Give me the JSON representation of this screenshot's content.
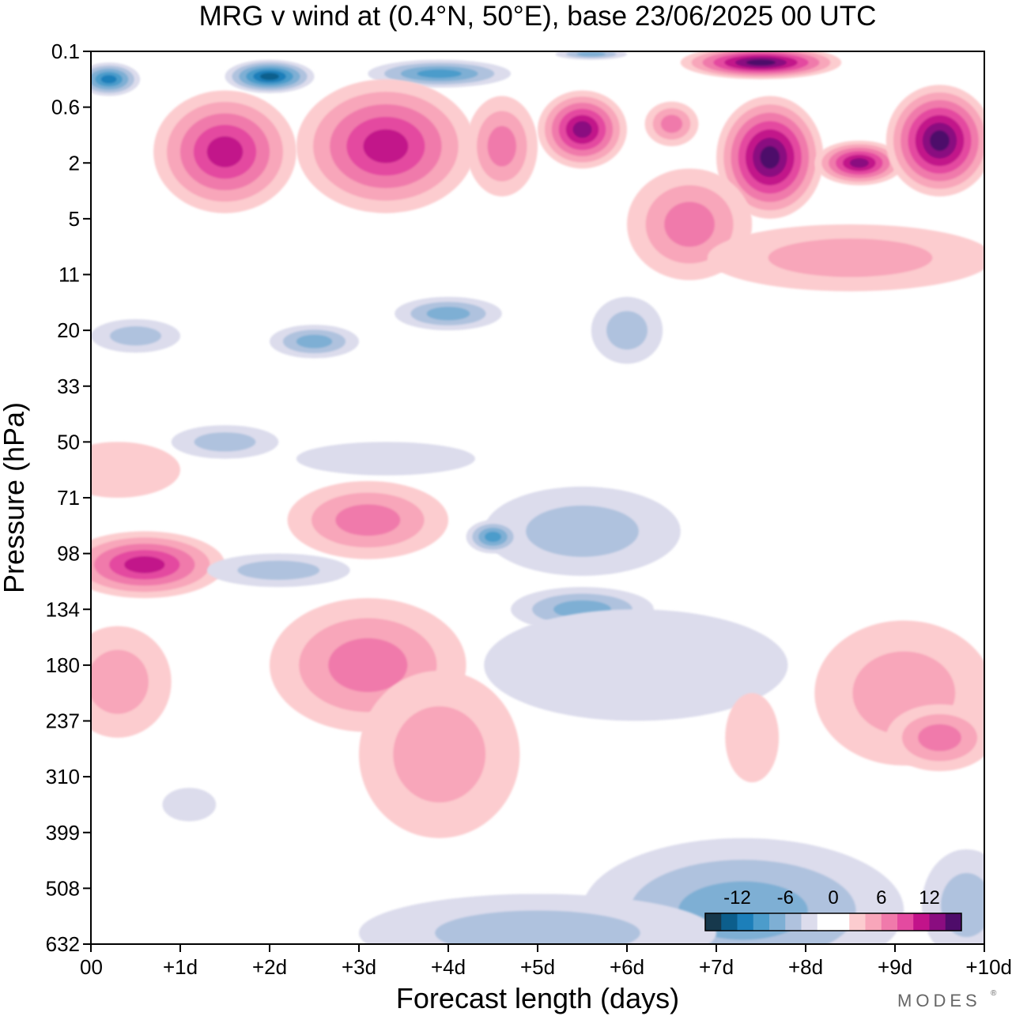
{
  "chart_data": {
    "type": "heatmap",
    "title": "MRG v wind at (0.4°N, 50°E),  base 23/06/2025  00 UTC",
    "xlabel": "Forecast length (days)",
    "ylabel": "Pressure (hPa)",
    "x_ticks": [
      "00",
      "+1d",
      "+2d",
      "+3d",
      "+4d",
      "+5d",
      "+6d",
      "+7d",
      "+8d",
      "+9d",
      "+10d"
    ],
    "y_ticks": [
      "0.1",
      "0.6",
      "2",
      "5",
      "11",
      "20",
      "33",
      "50",
      "71",
      "98",
      "134",
      "180",
      "237",
      "310",
      "399",
      "508",
      "632"
    ],
    "xlim": [
      0,
      10
    ],
    "ylim_index": [
      0,
      16
    ],
    "colorbar": {
      "labels": [
        "-12",
        "-6",
        "0",
        "6",
        "12"
      ],
      "label_values": [
        -12,
        -6,
        0,
        6,
        12
      ],
      "levels": [
        -14,
        -12,
        -10,
        -8,
        -6,
        -4,
        -2,
        0,
        2,
        4,
        6,
        8,
        10,
        12,
        14
      ],
      "colors": [
        "#16384c",
        "#0c5e8c",
        "#1c7fba",
        "#4c9ccb",
        "#7eafd4",
        "#afc2de",
        "#dcdcec",
        "#ffffff",
        "#ffffff",
        "#fccccf",
        "#f8a6ba",
        "#f07aab",
        "#e44aa0",
        "#c2138a",
        "#8a0d80",
        "#4e0c6a"
      ]
    },
    "features": [
      {
        "day": 0.2,
        "level": 0.5,
        "rx": 0.35,
        "ry": 0.3,
        "value": -10
      },
      {
        "day": 2.0,
        "level": 0.45,
        "rx": 0.5,
        "ry": 0.3,
        "value": -13
      },
      {
        "day": 3.9,
        "level": 0.4,
        "rx": 0.8,
        "ry": 0.25,
        "value": -8
      },
      {
        "day": 5.6,
        "level": 0.05,
        "rx": 0.4,
        "ry": 0.1,
        "value": -6
      },
      {
        "day": 7.5,
        "level": 0.2,
        "rx": 0.9,
        "ry": 0.3,
        "value": 14
      },
      {
        "day": 1.5,
        "level": 1.8,
        "rx": 0.8,
        "ry": 1.1,
        "value": 11
      },
      {
        "day": 3.3,
        "level": 1.7,
        "rx": 1.0,
        "ry": 1.2,
        "value": 10
      },
      {
        "day": 4.6,
        "level": 1.7,
        "rx": 0.4,
        "ry": 0.9,
        "value": 7
      },
      {
        "day": 5.5,
        "level": 1.4,
        "rx": 0.5,
        "ry": 0.7,
        "value": 12
      },
      {
        "day": 6.5,
        "level": 1.3,
        "rx": 0.3,
        "ry": 0.4,
        "value": 7
      },
      {
        "day": 7.6,
        "level": 1.9,
        "rx": 0.6,
        "ry": 1.1,
        "value": 14
      },
      {
        "day": 8.6,
        "level": 2.0,
        "rx": 0.5,
        "ry": 0.4,
        "value": 12
      },
      {
        "day": 9.5,
        "level": 1.6,
        "rx": 0.6,
        "ry": 1.0,
        "value": 14
      },
      {
        "day": 6.7,
        "level": 3.1,
        "rx": 0.7,
        "ry": 1.0,
        "value": 6
      },
      {
        "day": 8.5,
        "level": 3.7,
        "rx": 1.6,
        "ry": 0.6,
        "value": 5
      },
      {
        "day": 4.0,
        "level": 4.7,
        "rx": 0.6,
        "ry": 0.3,
        "value": -7
      },
      {
        "day": 2.5,
        "level": 5.2,
        "rx": 0.5,
        "ry": 0.3,
        "value": -6
      },
      {
        "day": 6.0,
        "level": 5.0,
        "rx": 0.4,
        "ry": 0.6,
        "value": -4
      },
      {
        "day": 0.5,
        "level": 5.1,
        "rx": 0.5,
        "ry": 0.3,
        "value": -4
      },
      {
        "day": 1.5,
        "level": 7.0,
        "rx": 0.6,
        "ry": 0.3,
        "value": -4
      },
      {
        "day": 3.3,
        "level": 7.3,
        "rx": 1.0,
        "ry": 0.3,
        "value": -3
      },
      {
        "day": 0.3,
        "level": 7.5,
        "rx": 0.7,
        "ry": 0.5,
        "value": 3
      },
      {
        "day": 5.5,
        "level": 8.6,
        "rx": 1.1,
        "ry": 0.8,
        "value": -4
      },
      {
        "day": 4.5,
        "level": 8.7,
        "rx": 0.3,
        "ry": 0.3,
        "value": -8
      },
      {
        "day": 3.1,
        "level": 8.4,
        "rx": 0.9,
        "ry": 0.7,
        "value": 6
      },
      {
        "day": 0.6,
        "level": 9.2,
        "rx": 0.9,
        "ry": 0.6,
        "value": 10
      },
      {
        "day": 2.1,
        "level": 9.3,
        "rx": 0.8,
        "ry": 0.3,
        "value": -4
      },
      {
        "day": 5.5,
        "level": 10.0,
        "rx": 0.8,
        "ry": 0.4,
        "value": -6
      },
      {
        "day": 3.1,
        "level": 11.0,
        "rx": 1.1,
        "ry": 1.2,
        "value": 7
      },
      {
        "day": 3.9,
        "level": 12.6,
        "rx": 0.9,
        "ry": 1.5,
        "value": 5
      },
      {
        "day": 0.3,
        "level": 11.3,
        "rx": 0.6,
        "ry": 1.0,
        "value": 5
      },
      {
        "day": 6.1,
        "level": 11.0,
        "rx": 1.7,
        "ry": 1.0,
        "value": -3
      },
      {
        "day": 1.1,
        "level": 13.5,
        "rx": 0.3,
        "ry": 0.3,
        "value": -3
      },
      {
        "day": 9.1,
        "level": 11.5,
        "rx": 1.0,
        "ry": 1.3,
        "value": 4
      },
      {
        "day": 9.5,
        "level": 12.3,
        "rx": 0.6,
        "ry": 0.6,
        "value": 7
      },
      {
        "day": 7.4,
        "level": 12.3,
        "rx": 0.3,
        "ry": 0.8,
        "value": 3
      },
      {
        "day": 7.3,
        "level": 15.4,
        "rx": 1.8,
        "ry": 1.3,
        "value": -6
      },
      {
        "day": 5.0,
        "level": 15.8,
        "rx": 2.0,
        "ry": 0.7,
        "value": -4
      },
      {
        "day": 9.8,
        "level": 15.3,
        "rx": 0.5,
        "ry": 1.0,
        "value": -4
      }
    ]
  },
  "colorbar_labels": [
    "-12",
    "-6",
    "0",
    "6",
    "12"
  ],
  "brand": "MODES"
}
